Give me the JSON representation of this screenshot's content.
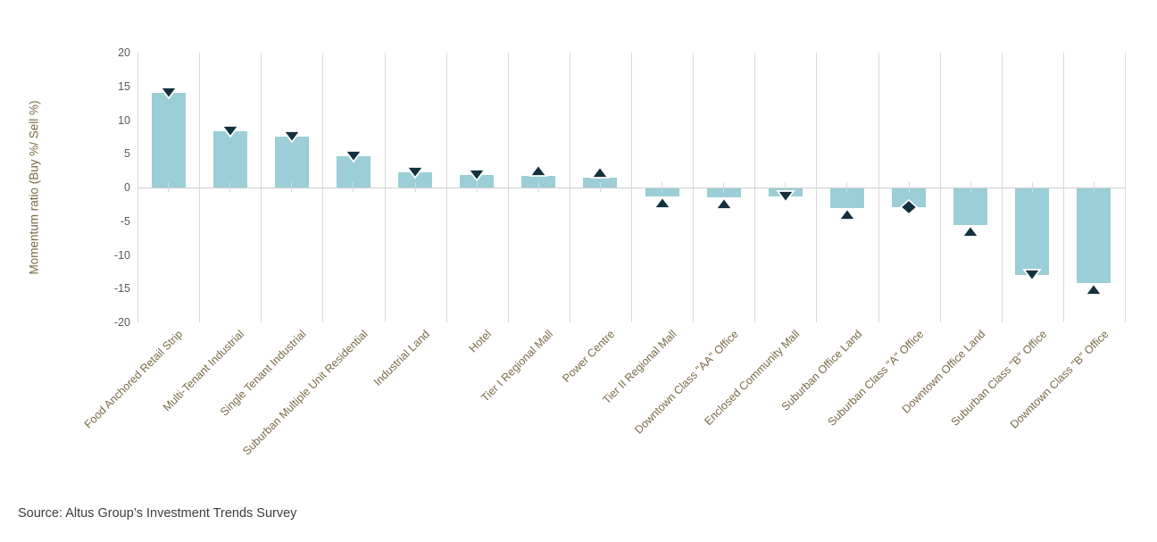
{
  "chart_data": {
    "type": "bar",
    "title": "",
    "xlabel": "",
    "ylabel": "Momentum ratio (Buy %/ Sell %)",
    "ylim": [
      -20,
      20
    ],
    "yticks": [
      20,
      15,
      10,
      5,
      0,
      -5,
      -10,
      -15,
      -20
    ],
    "grid": "vertical-category-separators-only",
    "legend_position": "none",
    "categories": [
      "Food Anchored Retail Strip",
      "Multi-Tenant Industrial",
      "Single Tenant Industrial",
      "Suburban Multiple Unit Residential",
      "Industrial Land",
      "Hotel",
      "Tier I Regional Mall",
      "Power Centre",
      "Tier II Regional Mall",
      "Downtown Class \"AA\" Office",
      "Enclosed Community Mall",
      "Suburban Office Land",
      "Suburban Class \"A\" Office",
      "Downtown Office Land",
      "Suburban Class \"B\" Office",
      "Downtown Class \"B\" Office"
    ],
    "values": [
      14.0,
      8.4,
      7.5,
      4.7,
      2.3,
      1.9,
      1.7,
      1.4,
      -1.3,
      -1.4,
      -1.3,
      -3.0,
      -2.9,
      -5.5,
      -13.0,
      -14.2
    ],
    "markers": [
      "down",
      "down",
      "down",
      "down",
      "down",
      "down",
      "up",
      "up",
      "up",
      "up",
      "down",
      "up",
      "diamond",
      "up",
      "down",
      "up"
    ],
    "marker_meaning_icons": [
      "down-triangle-icon",
      "up-triangle-icon",
      "diamond-icon"
    ]
  },
  "source": {
    "label": "Source:  Altus Group’s Investment Trends Survey"
  },
  "colors": {
    "bar": "#9bced6",
    "marker": "#13303e",
    "marker_outline": "#ffffff",
    "axis_text_olive": "#7a6a45",
    "y_tick_gray": "#595959",
    "gridline": "#d9d9d9",
    "zero_line": "#cfcfcf",
    "source_text": "#3d3d3d",
    "background": "#ffffff"
  }
}
